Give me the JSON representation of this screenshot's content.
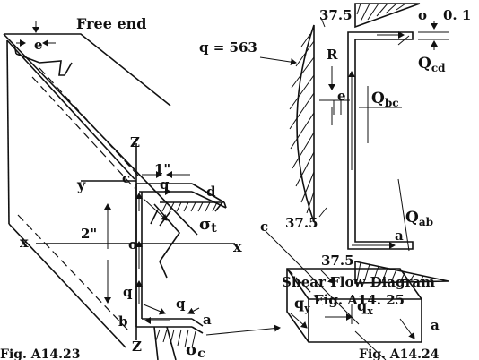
{
  "figure": {
    "left": {
      "free_end": "Free end",
      "e": "e",
      "z_top": "Z",
      "z_bottom": "Z",
      "c": "c",
      "d": "d",
      "y": "y",
      "x_left": "x",
      "x_right": "x",
      "o": "o",
      "b": "b",
      "a": "a",
      "q1": "q",
      "q2": "q",
      "q3": "q",
      "dim_width": "1\"",
      "dim_height": "2\"",
      "sigma_t": "σ",
      "sigma_t_sub": "t",
      "sigma_c": "σ",
      "sigma_c_sub": "c",
      "fig_left_label": "Fig. A14.23"
    },
    "shear_flow": {
      "q_eq": "q = 563",
      "v_top": "37.5",
      "v_bot": "37.5",
      "v_flange_bot": "37.5",
      "R": "R",
      "e": "e",
      "o": "o",
      "a": "a",
      "dim": "0. 1",
      "Q_cd_main": "Q",
      "Q_cd_sub": "cd",
      "Q_bc_main": "Q",
      "Q_bc_sub": "bc",
      "Q_ab_main": "Q",
      "Q_ab_sub": "ab",
      "title": "Shear Flow Diagram",
      "fig": "Fig. A14. 25"
    },
    "element": {
      "c": "c",
      "a": "a",
      "qy_main": "q",
      "qy_sub": "y",
      "qx_main": "q",
      "qx_sub": "x",
      "fig": "Fig. A14.24"
    }
  }
}
